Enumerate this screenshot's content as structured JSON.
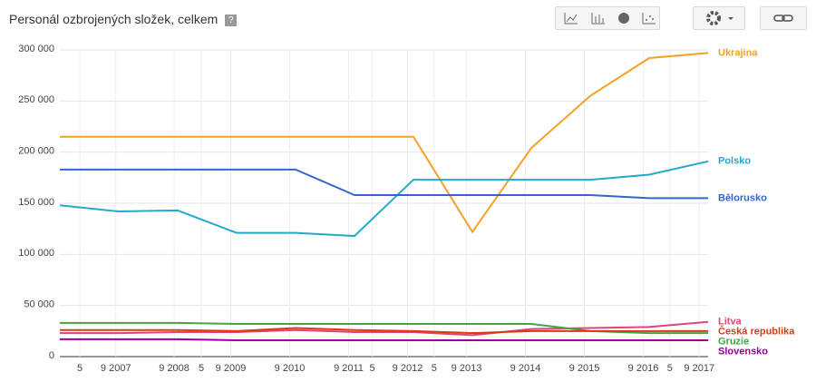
{
  "chart_data": {
    "type": "line",
    "title": "Personál ozbrojených složek, celkem",
    "help": "?",
    "x": [
      2006,
      2007,
      2008,
      2009,
      2010,
      2011,
      2012,
      2013,
      2014,
      2015,
      2016,
      2017
    ],
    "xlim": [
      2006,
      2017
    ],
    "xticks": [
      {
        "value": 2006.34,
        "label": "5"
      },
      {
        "value": 2006.95,
        "label": "9 2007"
      },
      {
        "value": 2007.94,
        "label": "9 2008"
      },
      {
        "value": 2008.4,
        "label": "5"
      },
      {
        "value": 2008.9,
        "label": "9 2009"
      },
      {
        "value": 2009.9,
        "label": "9 2010"
      },
      {
        "value": 2010.9,
        "label": "9 2011"
      },
      {
        "value": 2011.3,
        "label": "5"
      },
      {
        "value": 2011.9,
        "label": "9 2012"
      },
      {
        "value": 2012.35,
        "label": "5"
      },
      {
        "value": 2012.9,
        "label": "9 2013"
      },
      {
        "value": 2013.9,
        "label": "9 2014"
      },
      {
        "value": 2014.9,
        "label": "9 2015"
      },
      {
        "value": 2015.9,
        "label": "9 2016"
      },
      {
        "value": 2016.35,
        "label": "5"
      },
      {
        "value": 2016.85,
        "label": "9 2017"
      }
    ],
    "ylim": [
      0,
      300000
    ],
    "yticks": [
      0,
      {
        "value": 50000,
        "label": "50 000"
      },
      {
        "value": 100000,
        "label": "100 000"
      },
      {
        "value": 150000,
        "label": "150 000"
      },
      {
        "value": 200000,
        "label": "200 000"
      },
      {
        "value": 250000,
        "label": "250 000"
      },
      {
        "value": 300000,
        "label": "300 000"
      }
    ],
    "grid": true,
    "series": [
      {
        "name": "Ukrajina",
        "color": "#f4a125",
        "values": [
          215000,
          215000,
          215000,
          215000,
          215000,
          215000,
          215000,
          122000,
          204000,
          255000,
          292000,
          297000
        ]
      },
      {
        "name": "Polsko",
        "color": "#22aacc",
        "values": [
          148000,
          142000,
          143000,
          121000,
          121000,
          118000,
          173000,
          173000,
          173000,
          173000,
          178000,
          191000
        ]
      },
      {
        "name": "Bělorusko",
        "color": "#3366cc",
        "values": [
          183000,
          183000,
          183000,
          183000,
          183000,
          158000,
          158000,
          158000,
          158000,
          158000,
          155000,
          155000
        ]
      },
      {
        "name": "Litva",
        "color": "#dd4477",
        "values": [
          23000,
          23000,
          24000,
          24000,
          26000,
          24000,
          24000,
          21000,
          27000,
          28000,
          29000,
          34000
        ]
      },
      {
        "name": "Gruzie",
        "color": "#43a543",
        "values": [
          33000,
          33000,
          33000,
          32000,
          32000,
          32000,
          32000,
          32000,
          32000,
          25000,
          23000,
          23000
        ]
      },
      {
        "name": "Česká republika",
        "color": "#dc3912",
        "values": [
          26000,
          26000,
          26000,
          25000,
          28000,
          26000,
          25000,
          23000,
          25000,
          25000,
          25000,
          25000
        ]
      },
      {
        "name": "Slovensko",
        "color": "#990099",
        "values": [
          17000,
          17000,
          17000,
          16000,
          16000,
          16000,
          16000,
          16000,
          16000,
          16000,
          16000,
          16000
        ]
      }
    ]
  }
}
